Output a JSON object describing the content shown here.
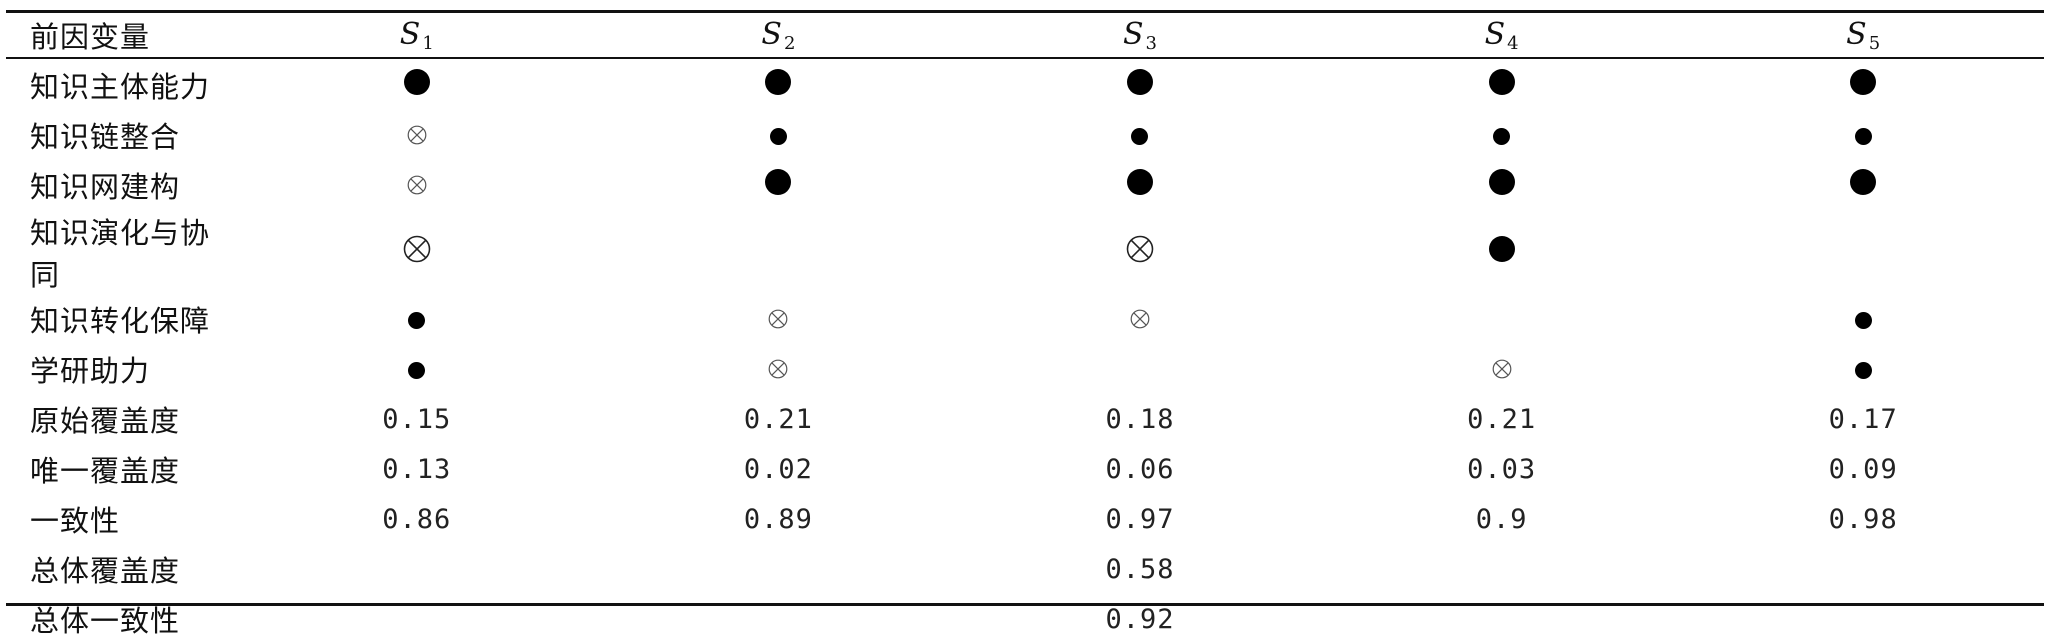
{
  "table": {
    "header": {
      "corner": "前因变量",
      "columns": [
        {
          "letter": "S",
          "sub": "1"
        },
        {
          "letter": "S",
          "sub": "2"
        },
        {
          "letter": "S",
          "sub": "3"
        },
        {
          "letter": "S",
          "sub": "4"
        },
        {
          "letter": "S",
          "sub": "5"
        }
      ]
    },
    "legend_symbols": {
      "big-dot": "core condition present (large black circle)",
      "small-dot": "peripheral condition present (small black circle)",
      "big-otimes": "core condition absent (large circled cross)",
      "small-otimes": "peripheral condition absent (small circled cross)",
      "none": "blank"
    },
    "condition_rows": [
      {
        "label": "知识主体能力",
        "cells": [
          "big-dot",
          "big-dot",
          "big-dot",
          "big-dot",
          "big-dot"
        ]
      },
      {
        "label": "知识链整合",
        "cells": [
          "small-otimes",
          "small-dot",
          "small-dot",
          "small-dot",
          "small-dot"
        ]
      },
      {
        "label": "知识网建构",
        "cells": [
          "small-otimes",
          "big-dot",
          "big-dot",
          "big-dot",
          "big-dot"
        ]
      },
      {
        "label": "知识演化与协同",
        "cells": [
          "big-otimes",
          "none",
          "big-otimes",
          "big-dot",
          "none"
        ]
      },
      {
        "label": "知识转化保障",
        "cells": [
          "small-dot",
          "small-otimes",
          "small-otimes",
          "none",
          "small-dot"
        ]
      },
      {
        "label": "学研助力",
        "cells": [
          "small-dot",
          "small-otimes",
          "none",
          "small-otimes",
          "small-dot"
        ]
      }
    ],
    "metric_rows": [
      {
        "label": "原始覆盖度",
        "values": [
          "0.15",
          "0.21",
          "0.18",
          "0.21",
          "0.17"
        ]
      },
      {
        "label": "唯一覆盖度",
        "values": [
          "0.13",
          "0.02",
          "0.06",
          "0.03",
          "0.09"
        ]
      },
      {
        "label": "一致性",
        "values": [
          "0.86",
          "0.89",
          "0.97",
          "0.9",
          "0.98"
        ]
      }
    ],
    "overall_rows": [
      {
        "label": "总体覆盖度",
        "value": "0.58"
      },
      {
        "label": "总体一致性",
        "value": "0.92"
      }
    ]
  }
}
